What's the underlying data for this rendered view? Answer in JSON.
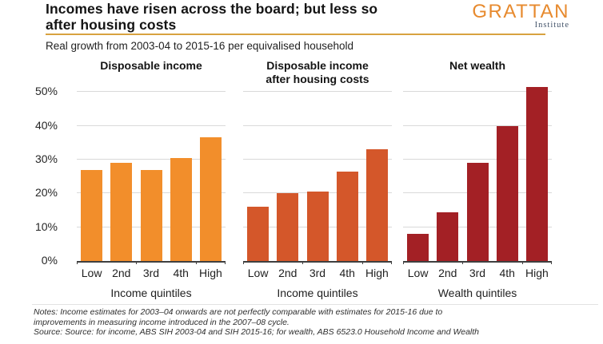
{
  "header": {
    "title_lines": [
      "Incomes have risen across the board; but less so",
      "after housing costs"
    ],
    "subtitle": "Real growth from 2003-04 to 2015-16 per equivalised household",
    "logo": {
      "name": "GRATTAN",
      "tagline": "Institute"
    }
  },
  "colors": {
    "disposable_income_bar": "#F28E2B",
    "after_housing_bar": "#D4572A",
    "net_wealth_bar": "#A32025",
    "gold_rule": "#D8A240",
    "gridline": "#D9D9D9",
    "axis": "#3F3F3F",
    "logo_orange": "#E78A2E",
    "logo_tagline_blue": "#44546A"
  },
  "chart_data": {
    "type": "bar",
    "categories": [
      "Low",
      "2nd",
      "3rd",
      "4th",
      "High"
    ],
    "y_ticks": [
      "0%",
      "10%",
      "20%",
      "30%",
      "40%",
      "50%"
    ],
    "ylim": [
      0,
      50
    ],
    "grid": true,
    "legend": "none",
    "panels": [
      {
        "title_lines": [
          "Disposable income"
        ],
        "xlabel": "Income quintiles",
        "values": [
          27,
          29,
          27,
          30.5,
          36.5
        ],
        "color": "#F28E2B"
      },
      {
        "title_lines": [
          "Disposable income",
          "after housing costs"
        ],
        "xlabel": "Income quintiles",
        "values": [
          16,
          20,
          20.5,
          26.5,
          33
        ],
        "color": "#D4572A"
      },
      {
        "title_lines": [
          "Net wealth"
        ],
        "xlabel": "Wealth quintiles",
        "values": [
          8,
          14.5,
          29,
          40,
          51.5
        ],
        "color": "#A32025"
      }
    ]
  },
  "notes": {
    "lines": [
      "Notes: Income estimates for 2003–04  onwards  are not perfectly comparable with  estimates for 2015-16 due to",
      "improvements in measuring income introduced in the 2007–08 cycle.",
      "Source: Source: for income, ABS SIH 2003-04 and SIH 2015-16; for wealth,  ABS 6523.0 Household Income and Wealth"
    ]
  }
}
